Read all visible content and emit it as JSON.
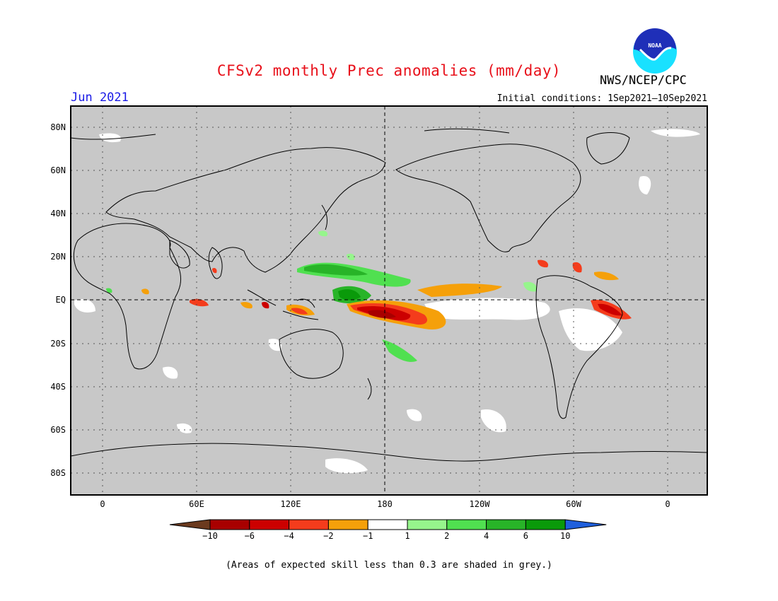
{
  "header": {
    "title": "CFSv2 monthly Prec anomalies (mm/day)",
    "agency": "NWS/NCEP/CPC",
    "logo_text": "NOAA",
    "month": "Jun 2021",
    "initial_conditions": "Initial conditions: 1Sep2021—10Sep2021"
  },
  "map": {
    "lat_labels": [
      "80N",
      "60N",
      "40N",
      "20N",
      "EQ",
      "20S",
      "40S",
      "60S",
      "80S"
    ],
    "lon_labels": [
      "0",
      "60E",
      "120E",
      "180",
      "120W",
      "60W",
      "0"
    ],
    "lat_values": [
      80,
      60,
      40,
      20,
      0,
      -20,
      -40,
      -60,
      -80
    ],
    "lon_values": [
      0,
      60,
      120,
      180,
      240,
      300,
      360
    ],
    "extent": {
      "lon_min": -20,
      "lon_max": 380,
      "lat_min": -90,
      "lat_max": 90
    },
    "colors": {
      "grey_mask": "#c8c8c8",
      "coast": "#000000"
    }
  },
  "colorbar": {
    "tick_labels": [
      "−10",
      "−6",
      "−4",
      "−2",
      "−1",
      "1",
      "2",
      "4",
      "6",
      "10"
    ],
    "colors": [
      "#6b3a1e",
      "#a80000",
      "#cc0000",
      "#f43c1c",
      "#f5a00a",
      "#ffffff",
      "#96f58c",
      "#50e050",
      "#28b428",
      "#0a9a0a",
      "#1f5fdc"
    ]
  },
  "footnote": "(Areas of expected skill less than 0.3 are shaded in grey.)"
}
